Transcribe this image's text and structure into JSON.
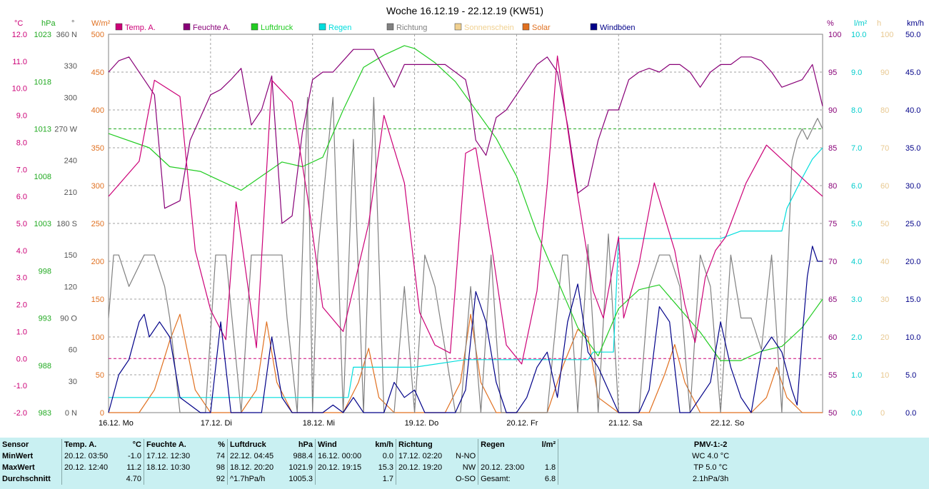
{
  "chart_data": {
    "type": "line",
    "title": "Woche 16.12.19 - 22.12.19 (KW51)",
    "x_range": [
      "16.12.2019 00:00",
      "23.12.2019 00:00"
    ],
    "x_tick_labels": [
      "16.12.  Mo",
      "17.12.  Di",
      "18.12.  Mi",
      "19.12.  Do",
      "20.12.  Fr",
      "21.12.  Sa",
      "22.12.  So"
    ],
    "legend": [
      {
        "name": "Temp. A.",
        "color": "#cc0077"
      },
      {
        "name": "Feuchte A.",
        "color": "#880077"
      },
      {
        "name": "Luftdruck",
        "color": "#22cc22"
      },
      {
        "name": "Regen",
        "color": "#00dddd"
      },
      {
        "name": "Richtung",
        "color": "#808080"
      },
      {
        "name": "Sonnenschein",
        "color": "#f0d090"
      },
      {
        "name": "Solar",
        "color": "#e07020"
      },
      {
        "name": "Windböen",
        "color": "#000088"
      }
    ],
    "axes": {
      "temp": {
        "unit": "°C",
        "range": [
          -2.0,
          12.0
        ],
        "ticks": [
          "12.0",
          "11.0",
          "10.0",
          "9.0",
          "8.0",
          "7.0",
          "6.0",
          "5.0",
          "4.0",
          "3.0",
          "2.0",
          "1.0",
          "0.0",
          "-1.0",
          "-2.0"
        ],
        "color": "#cc0077"
      },
      "pressure": {
        "unit": "hPa",
        "range": [
          983,
          1023
        ],
        "ticks": [
          "1023",
          "1018",
          "1013",
          "1008",
          "1003",
          "998",
          "993",
          "988",
          "983"
        ],
        "color": "#22aa22"
      },
      "direction": {
        "unit": "°",
        "range": [
          0,
          360
        ],
        "ticks": [
          "360 N",
          "330",
          "300",
          "270 W",
          "240",
          "210",
          "180 S",
          "150",
          "120",
          "90 O",
          "60",
          "30",
          "0 N"
        ],
        "color": "#555555"
      },
      "solar": {
        "unit": "W/m²",
        "range": [
          0,
          500
        ],
        "ticks": [
          "500",
          "450",
          "400",
          "350",
          "300",
          "250",
          "200",
          "150",
          "100",
          "50",
          "0"
        ],
        "color": "#e07020"
      },
      "humidity": {
        "unit": "%",
        "range": [
          50,
          100
        ],
        "ticks": [
          "100",
          "95",
          "90",
          "85",
          "80",
          "75",
          "70",
          "65",
          "60",
          "55",
          "50"
        ],
        "color": "#880077"
      },
      "rain": {
        "unit": "l/m²",
        "range": [
          0.0,
          10.0
        ],
        "ticks": [
          "10.0",
          "9.0",
          "8.0",
          "7.0",
          "6.0",
          "5.0",
          "4.0",
          "3.0",
          "2.0",
          "1.0",
          "0.0"
        ],
        "color": "#00cccc"
      },
      "sunshine": {
        "unit": "h",
        "range": [
          0,
          100
        ],
        "ticks": [
          "100",
          "90",
          "80",
          "70",
          "60",
          "50",
          "40",
          "30",
          "20",
          "10",
          "0"
        ],
        "color": "#e8c890"
      },
      "wind": {
        "unit": "km/h",
        "range": [
          0.0,
          50.0
        ],
        "ticks": [
          "50.0",
          "45.0",
          "40.0",
          "35.0",
          "30.0",
          "25.0",
          "20.0",
          "15.0",
          "10.0",
          "5.0",
          "0.0"
        ],
        "color": "#000088"
      }
    },
    "grid": true,
    "reference_lines": [
      {
        "axis": "temp",
        "value": 0.0,
        "color": "#cc0077"
      },
      {
        "axis": "pressure",
        "value": 1013,
        "color": "#22aa22"
      }
    ],
    "series": [
      {
        "name": "Temp. A.",
        "axis": "temp",
        "color": "#cc0077",
        "x": [
          0,
          0.3,
          0.45,
          0.7,
          0.85,
          1.0,
          1.15,
          1.25,
          1.45,
          1.6,
          1.8,
          1.95,
          2.1,
          2.3,
          2.55,
          2.7,
          2.9,
          3.05,
          3.2,
          3.35,
          3.5,
          3.6,
          3.75,
          3.9,
          4.05,
          4.2,
          4.3,
          4.4,
          4.55,
          4.75,
          4.85,
          5.0,
          5.05,
          5.2,
          5.35,
          5.55,
          5.65,
          5.75,
          5.85,
          5.95,
          6.05,
          6.25,
          6.45,
          6.65,
          6.85,
          7.0
        ],
        "y": [
          6.0,
          7.3,
          10.3,
          9.7,
          4.0,
          1.8,
          0.7,
          5.8,
          0.4,
          10.3,
          9.5,
          6.0,
          1.9,
          1.0,
          5.0,
          9.0,
          6.5,
          1.7,
          0.5,
          0.2,
          7.6,
          7.8,
          4.3,
          0.5,
          -0.2,
          2.5,
          6.4,
          11.2,
          7.2,
          2.5,
          1.5,
          4.5,
          1.5,
          3.5,
          6.5,
          4.0,
          2.0,
          0.6,
          3.0,
          4.0,
          4.5,
          6.5,
          7.9,
          7.2,
          6.5,
          6.0
        ]
      },
      {
        "name": "Feuchte A.",
        "axis": "humidity",
        "color": "#880077",
        "x": [
          0,
          0.1,
          0.2,
          0.35,
          0.45,
          0.55,
          0.7,
          0.8,
          0.9,
          1.0,
          1.1,
          1.2,
          1.3,
          1.4,
          1.5,
          1.6,
          1.7,
          1.8,
          1.9,
          2.0,
          2.1,
          2.2,
          2.4,
          2.6,
          2.8,
          2.9,
          3.0,
          3.1,
          3.2,
          3.3,
          3.5,
          3.55,
          3.6,
          3.7,
          3.8,
          3.9,
          4.0,
          4.2,
          4.3,
          4.4,
          4.5,
          4.6,
          4.7,
          4.8,
          4.9,
          5.0,
          5.1,
          5.2,
          5.3,
          5.4,
          5.5,
          5.6,
          5.7,
          5.8,
          5.9,
          6.0,
          6.1,
          6.2,
          6.3,
          6.4,
          6.5,
          6.6,
          6.8,
          6.9,
          7.0
        ],
        "y": [
          95,
          96.5,
          97,
          94,
          92,
          77,
          78,
          86,
          89,
          92,
          92.7,
          94,
          95.5,
          88,
          90,
          94.5,
          75,
          76,
          87,
          94,
          95,
          95,
          98,
          98,
          93,
          96,
          96,
          96,
          96,
          96,
          94,
          91,
          86,
          84,
          89,
          90,
          92,
          96,
          97,
          95,
          88,
          79,
          80,
          86,
          90,
          90,
          94,
          95,
          95.5,
          95,
          96,
          96,
          95,
          93,
          95,
          96,
          96,
          97,
          97,
          96.5,
          95,
          93,
          94,
          96,
          90.5
        ]
      },
      {
        "name": "Luftdruck",
        "axis": "pressure",
        "color": "#22cc22",
        "x": [
          0,
          0.4,
          0.6,
          0.9,
          1.1,
          1.3,
          1.5,
          1.7,
          1.9,
          2.1,
          2.3,
          2.5,
          2.7,
          2.9,
          3.0,
          3.2,
          3.4,
          3.6,
          3.8,
          4.0,
          4.2,
          4.4,
          4.6,
          4.8,
          5.0,
          5.2,
          5.4,
          5.6,
          5.8,
          6.0,
          6.2,
          6.4,
          6.6,
          6.8,
          7.0
        ],
        "y": [
          1012.5,
          1011,
          1009,
          1008.5,
          1007.5,
          1006.5,
          1008,
          1009.5,
          1009,
          1010,
          1015,
          1019.5,
          1020.8,
          1021.8,
          1021.5,
          1020,
          1018,
          1015,
          1012,
          1008,
          1002,
          997,
          992,
          989,
          994,
          996,
          996.5,
          994,
          991.5,
          988.5,
          988.5,
          989.5,
          990,
          992,
          995
        ]
      },
      {
        "name": "Regen",
        "axis": "rain",
        "color": "#00dddd",
        "x": [
          0,
          1.0,
          2.0,
          2.35,
          2.4,
          3.0,
          3.5,
          4.0,
          4.7,
          4.75,
          4.95,
          5.0,
          5.5,
          6.0,
          6.2,
          6.6,
          6.65,
          6.8,
          6.9,
          7.0
        ],
        "y": [
          0.4,
          0.4,
          0.4,
          0.4,
          1.2,
          1.2,
          1.4,
          1.4,
          1.4,
          1.6,
          1.6,
          4.6,
          4.6,
          4.6,
          4.8,
          4.8,
          5.4,
          6.2,
          6.7,
          7.0
        ]
      },
      {
        "name": "Richtung",
        "axis": "direction",
        "color": "#808080",
        "x": [
          0,
          0.05,
          0.1,
          0.2,
          0.35,
          0.45,
          0.55,
          0.6,
          0.7,
          0.8,
          0.95,
          1.05,
          1.15,
          1.3,
          1.4,
          1.45,
          1.6,
          1.7,
          1.75,
          1.85,
          1.95,
          2.0,
          2.05,
          2.2,
          2.3,
          2.4,
          2.5,
          2.6,
          2.7,
          2.8,
          2.9,
          3.0,
          3.1,
          3.2,
          3.3,
          3.4,
          3.45,
          3.55,
          3.65,
          3.75,
          3.85,
          4.0,
          4.1,
          4.3,
          4.45,
          4.5,
          4.6,
          4.7,
          4.8,
          4.9,
          5.0,
          5.05,
          5.2,
          5.3,
          5.4,
          5.5,
          5.6,
          5.7,
          5.8,
          5.9,
          6.0,
          6.1,
          6.2,
          6.3,
          6.4,
          6.5,
          6.6,
          6.7,
          6.75,
          6.8,
          6.85,
          6.9,
          6.95,
          7.0
        ],
        "y": [
          90,
          150,
          150,
          120,
          150,
          150,
          120,
          90,
          0,
          0,
          0,
          150,
          150,
          0,
          150,
          150,
          150,
          150,
          90,
          0,
          300,
          0,
          150,
          300,
          0,
          260,
          0,
          300,
          0,
          0,
          120,
          0,
          150,
          120,
          60,
          0,
          0,
          120,
          0,
          150,
          0,
          0,
          0,
          0,
          150,
          150,
          0,
          160,
          0,
          170,
          0,
          0,
          0,
          120,
          150,
          150,
          120,
          0,
          150,
          120,
          0,
          150,
          90,
          90,
          60,
          150,
          0,
          240,
          260,
          270,
          260,
          270,
          280,
          270
        ]
      },
      {
        "name": "Solar",
        "axis": "solar",
        "color": "#e07020",
        "x": [
          0,
          0.3,
          0.45,
          0.6,
          0.7,
          0.85,
          1.0,
          1.3,
          1.45,
          1.55,
          1.65,
          1.8,
          2.0,
          2.3,
          2.45,
          2.55,
          2.65,
          2.8,
          3.0,
          3.3,
          3.45,
          3.55,
          3.65,
          3.8,
          4.0,
          4.3,
          4.45,
          4.6,
          4.7,
          4.8,
          5.0,
          5.3,
          5.45,
          5.55,
          5.65,
          5.8,
          6.0,
          6.3,
          6.45,
          6.55,
          6.65,
          6.8,
          7.0
        ],
        "y": [
          0,
          0,
          30,
          95,
          130,
          30,
          0,
          0,
          30,
          120,
          40,
          0,
          0,
          0,
          40,
          85,
          20,
          0,
          0,
          0,
          40,
          130,
          40,
          0,
          0,
          0,
          60,
          110,
          100,
          20,
          0,
          0,
          50,
          90,
          40,
          0,
          0,
          0,
          20,
          60,
          20,
          0,
          0
        ]
      },
      {
        "name": "Windböen",
        "axis": "wind",
        "color": "#000088",
        "x": [
          0,
          0.1,
          0.2,
          0.3,
          0.35,
          0.4,
          0.5,
          0.6,
          0.7,
          0.8,
          0.9,
          1.0,
          1.1,
          1.2,
          1.3,
          1.4,
          1.5,
          1.6,
          1.7,
          1.8,
          1.9,
          2.0,
          2.1,
          2.2,
          2.3,
          2.4,
          2.5,
          2.6,
          2.7,
          2.8,
          2.9,
          3.0,
          3.1,
          3.2,
          3.3,
          3.4,
          3.5,
          3.6,
          3.7,
          3.8,
          3.9,
          4.0,
          4.1,
          4.2,
          4.3,
          4.4,
          4.5,
          4.6,
          4.7,
          4.8,
          4.9,
          5.0,
          5.1,
          5.2,
          5.3,
          5.4,
          5.5,
          5.6,
          5.7,
          5.8,
          5.9,
          6.0,
          6.1,
          6.2,
          6.3,
          6.4,
          6.5,
          6.6,
          6.7,
          6.75,
          6.8,
          6.85,
          6.9,
          6.95,
          7.0
        ],
        "y": [
          0,
          5,
          7,
          12,
          13,
          10,
          12,
          10,
          2,
          1,
          0,
          0,
          12,
          0,
          0,
          0,
          0,
          10,
          2,
          0,
          0,
          0,
          0,
          1,
          0,
          2,
          0,
          0,
          0,
          4,
          2,
          3,
          0,
          0,
          0,
          0,
          3,
          16,
          12,
          4,
          0,
          0,
          2,
          6,
          8,
          2,
          12,
          17,
          8,
          6,
          3,
          0,
          0,
          0,
          3,
          14,
          12,
          0,
          0,
          2,
          4,
          12,
          6,
          2,
          0,
          8,
          10,
          8,
          3,
          1,
          10,
          18,
          22,
          20,
          20
        ]
      }
    ]
  },
  "summary": {
    "headers": {
      "sensor": "Sensor",
      "temp": "Temp. A.",
      "temp_unit": "°C",
      "feuchte": "Feuchte A.",
      "feuchte_unit": "%",
      "luftdruck": "Luftdruck",
      "luftdruck_unit": "hPa",
      "wind": "Wind",
      "wind_unit": "km/h",
      "richtung": "Richtung",
      "regen": "Regen",
      "regen_unit": "l/m²",
      "pmv": "PMV-1:-2"
    },
    "rows": [
      {
        "label": "MinWert",
        "temp_time": "20.12.  03:50",
        "temp_val": "-1.0",
        "feuchte_time": "17.12.  12:30",
        "feuchte_val": "74",
        "luft_time": "22.12.  04:45",
        "luft_val": "988.4",
        "wind_time": "16.12.  00:00",
        "wind_val": "0.0",
        "richt_time": "17.12.  02:20",
        "richt_val": "N-NO",
        "regen_time": "",
        "regen_val": "",
        "pmv": "WC 4.0 °C"
      },
      {
        "label": "MaxWert",
        "temp_time": "20.12.  12:40",
        "temp_val": "11.2",
        "feuchte_time": "18.12.  10:30",
        "feuchte_val": "98",
        "luft_time": "18.12.  20:20",
        "luft_val": "1021.9",
        "wind_time": "20.12.  19:15",
        "wind_val": "15.3",
        "richt_time": "20.12.  19:20",
        "richt_val": "NW",
        "regen_time": "20.12.  23:00",
        "regen_val": "1.8",
        "pmv": "TP 5.0 °C"
      },
      {
        "label": "Durchschnitt",
        "temp_time": "",
        "temp_val": "4.70",
        "feuchte_time": "",
        "feuchte_val": "92",
        "luft_time": "^1.7hPa/h",
        "luft_val": "1005.3",
        "wind_time": "",
        "wind_val": "1.7",
        "richt_time": "",
        "richt_val": "O-SO",
        "regen_time": "Gesamt:",
        "regen_val": "6.8",
        "pmv": "2.1hPa/3h"
      }
    ]
  }
}
